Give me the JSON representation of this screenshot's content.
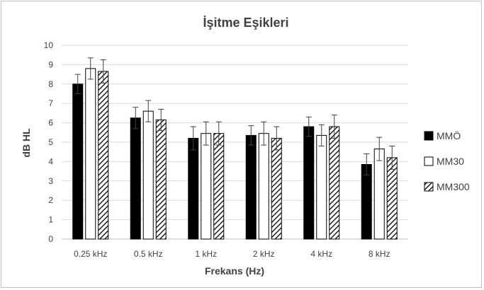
{
  "chart_data": {
    "type": "bar",
    "title": "İşitme Eşikleri",
    "xlabel": "Frekans (Hz)",
    "ylabel": "dB HL",
    "ylim": [
      0,
      10
    ],
    "yticks": [
      "0",
      "1",
      "2",
      "3",
      "4",
      "5",
      "6",
      "7",
      "8",
      "9",
      "10"
    ],
    "categories": [
      "0.25 kHz",
      "0.5 kHz",
      "1 kHz",
      "2 kHz",
      "4 kHz",
      "8 kHz"
    ],
    "grid": true,
    "legend_position": "right",
    "series": [
      {
        "name": "MMÖ",
        "pattern": "solid",
        "color": "#000000",
        "values": [
          8.0,
          6.25,
          5.2,
          5.35,
          5.8,
          3.85
        ],
        "errors": [
          0.5,
          0.55,
          0.6,
          0.5,
          0.5,
          0.55
        ]
      },
      {
        "name": "MM30",
        "pattern": "empty",
        "color": "#ffffff",
        "values": [
          8.8,
          6.6,
          5.45,
          5.45,
          5.35,
          4.65
        ],
        "errors": [
          0.55,
          0.55,
          0.6,
          0.6,
          0.55,
          0.6
        ]
      },
      {
        "name": "MM300",
        "pattern": "hatched",
        "color": "#000000",
        "values": [
          8.65,
          6.15,
          5.45,
          5.2,
          5.8,
          4.2
        ],
        "errors": [
          0.6,
          0.55,
          0.6,
          0.6,
          0.6,
          0.6
        ]
      }
    ]
  }
}
